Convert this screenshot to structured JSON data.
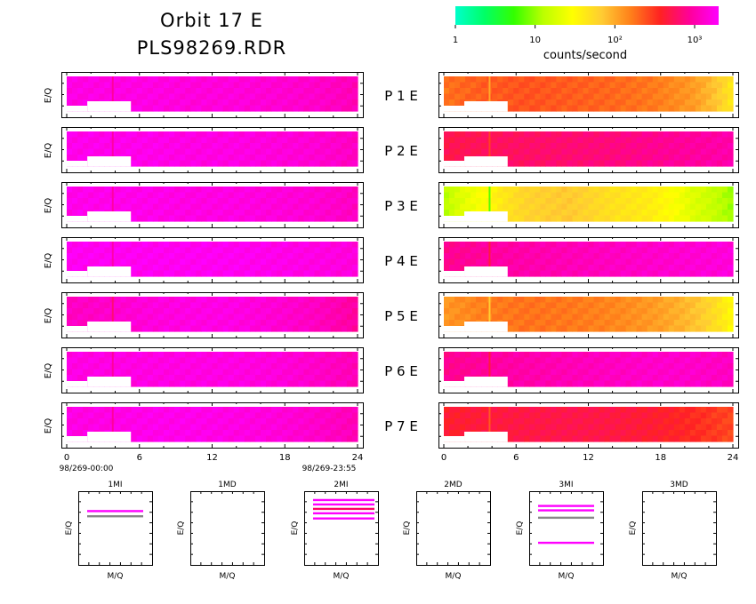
{
  "title": {
    "line1": "Orbit 17 E",
    "line2": "PLS98269.RDR"
  },
  "colorbar": {
    "ticks": [
      {
        "value": 1,
        "label": "1"
      },
      {
        "value": 10,
        "label": "10"
      },
      {
        "value": 100,
        "label": "10²"
      },
      {
        "value": 1000,
        "label": "10³"
      }
    ],
    "label": "counts/second",
    "range": [
      1,
      2000
    ],
    "stops": [
      "#00ffcc",
      "#00ff66",
      "#33ff00",
      "#bbff00",
      "#ffff00",
      "#ffcc33",
      "#ff7f1a",
      "#ff2222",
      "#ff0099",
      "#ff00ff"
    ]
  },
  "ylabel": "E/Q",
  "panel_axis": {
    "x_ticks": [
      "0",
      "6",
      "12",
      "18",
      "24"
    ],
    "xlim": [
      0,
      24
    ],
    "left_start": "98/269-00:00",
    "left_end": "98/269-23:55"
  },
  "chart_data": {
    "type": "heatmap",
    "x_units": "hours",
    "xlim": [
      0,
      24
    ],
    "spike_hour": 3.8,
    "gap": {
      "x": [
        1.7,
        5.3
      ]
    },
    "rows": [
      {
        "label": "P 1 E",
        "left": [
          1600,
          1600,
          1600,
          1500,
          1500,
          1400,
          1300,
          1100
        ],
        "right": [
          180,
          220,
          240,
          220,
          200,
          170,
          120,
          40
        ]
      },
      {
        "label": "P 2 E",
        "left": [
          1700,
          1700,
          1700,
          1600,
          1600,
          1500,
          1400,
          1200
        ],
        "right": [
          500,
          550,
          600,
          650,
          700,
          800,
          900,
          1000
        ]
      },
      {
        "label": "P 3 E",
        "left": [
          1700,
          1700,
          1700,
          1600,
          1600,
          1500,
          1400,
          1200
        ],
        "right": [
          12,
          30,
          60,
          70,
          50,
          40,
          20,
          10
        ]
      },
      {
        "label": "P 4 E",
        "left": [
          1800,
          1800,
          1800,
          1800,
          1800,
          1700,
          1600,
          1500
        ],
        "right": [
          800,
          900,
          1000,
          1100,
          1200,
          1300,
          1400,
          1500
        ]
      },
      {
        "label": "P 5 E",
        "left": [
          1200,
          1300,
          1500,
          1600,
          1600,
          1400,
          1200,
          900
        ],
        "right": [
          120,
          160,
          180,
          170,
          150,
          120,
          80,
          30
        ]
      },
      {
        "label": "P 6 E",
        "left": [
          1600,
          1600,
          1600,
          1600,
          1600,
          1500,
          1300,
          1100
        ],
        "right": [
          800,
          900,
          1000,
          1100,
          1200,
          1300,
          1300,
          1200
        ]
      },
      {
        "label": "P 7 E",
        "left": [
          1600,
          1600,
          1700,
          1700,
          1600,
          1500,
          1300,
          1100
        ],
        "right": [
          400,
          450,
          480,
          500,
          480,
          420,
          350,
          260
        ]
      }
    ],
    "mq_panels": [
      {
        "name": "1MI",
        "xlabel": "M/Q",
        "lines": [
          {
            "y": 0.27,
            "color": "#ff00ff"
          },
          {
            "y": 0.34,
            "color": "#888888"
          }
        ]
      },
      {
        "name": "1MD",
        "xlabel": "M/Q",
        "lines": []
      },
      {
        "name": "2MI",
        "xlabel": "M/Q",
        "lines": [
          {
            "y": 0.12,
            "color": "#ff00ff"
          },
          {
            "y": 0.18,
            "color": "#ff00ff"
          },
          {
            "y": 0.24,
            "color": "#ff0066"
          },
          {
            "y": 0.3,
            "color": "#ff00ff"
          },
          {
            "y": 0.37,
            "color": "#ff00ff"
          }
        ]
      },
      {
        "name": "2MD",
        "xlabel": "M/Q",
        "lines": []
      },
      {
        "name": "3MI",
        "xlabel": "M/Q",
        "lines": [
          {
            "y": 0.2,
            "color": "#ff00ff"
          },
          {
            "y": 0.26,
            "color": "#ff00ff"
          },
          {
            "y": 0.36,
            "color": "#888888"
          },
          {
            "y": 0.7,
            "color": "#ff00ff"
          }
        ]
      },
      {
        "name": "3MD",
        "xlabel": "M/Q",
        "lines": []
      }
    ]
  }
}
